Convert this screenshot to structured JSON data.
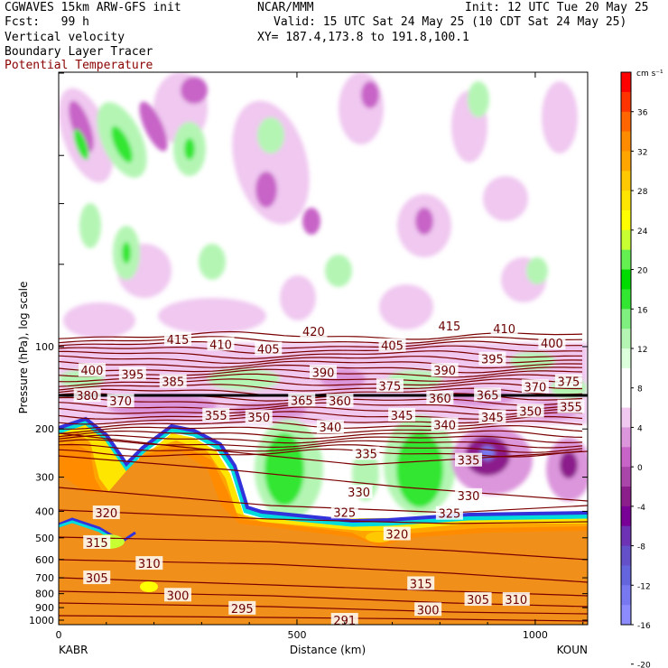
{
  "header": {
    "line1_left": "CGWAVES 15km ARW-GFS init",
    "line1_mid": "NCAR/MMM",
    "line1_right": "Init: 12 UTC Tue 20 May 25",
    "line2_left": "Fcst:   99 h",
    "line2_right": "Valid: 15 UTC Sat 24 May 25 (10 CDT Sat 24 May 25)",
    "line3_left": "Vertical velocity",
    "line3_right": "XY= 187.4,173.8 to 191.8,100.1",
    "line4_left": "Boundary Layer Tracer",
    "line5_left": "Potential Temperature"
  },
  "colors": {
    "theta_contour": "#7a0000",
    "tropopause_line": "#000000"
  },
  "chart_data": {
    "type": "heatmap",
    "xlabel": "Distance (km)",
    "ylabel": "Pressure (hPa), log scale",
    "xlim": [
      0,
      1110
    ],
    "x_ticks": [
      0,
      500,
      1000
    ],
    "y_ticks": [
      100,
      200,
      300,
      400,
      500,
      600,
      700,
      800,
      900,
      1000
    ],
    "ylim": [
      1000,
      10
    ],
    "y_scale": "log",
    "endpoints": {
      "left": "KABR",
      "right": "KOUN"
    },
    "colorbar": {
      "units": "cm s⁻¹",
      "tick_labels": [
        "36",
        "32",
        "28",
        "24",
        "20",
        "16",
        "12",
        "8",
        "4",
        "0",
        "-4",
        "-8",
        "-12",
        "-16",
        "-20"
      ],
      "colors": [
        "#ff0000",
        "#ff3300",
        "#ff6600",
        "#ff8c00",
        "#ffa500",
        "#ffc800",
        "#ffe600",
        "#ffff00",
        "#c8ff32",
        "#64f050",
        "#00dc00",
        "#32e632",
        "#7fef7f",
        "#b4f5b4",
        "#dcffdc",
        "#ffffff",
        "#ffffff",
        "#f0c8f0",
        "#dc96dc",
        "#c864c8",
        "#aa46aa",
        "#8c1e8c",
        "#780096",
        "#6e32b4",
        "#6450c8",
        "#6464dc",
        "#7878f0",
        "#8c8cff"
      ]
    },
    "theta_labels": [
      {
        "value": "415",
        "x": 250,
        "p": 94
      },
      {
        "value": "410",
        "x": 340,
        "p": 98
      },
      {
        "value": "405",
        "x": 440,
        "p": 102
      },
      {
        "value": "420",
        "x": 535,
        "p": 88
      },
      {
        "value": "405",
        "x": 700,
        "p": 99
      },
      {
        "value": "415",
        "x": 820,
        "p": 84
      },
      {
        "value": "410",
        "x": 935,
        "p": 86
      },
      {
        "value": "400",
        "x": 1035,
        "p": 97
      },
      {
        "value": "400",
        "x": 70,
        "p": 122
      },
      {
        "value": "395",
        "x": 155,
        "p": 126
      },
      {
        "value": "385",
        "x": 240,
        "p": 134
      },
      {
        "value": "390",
        "x": 555,
        "p": 124
      },
      {
        "value": "375",
        "x": 695,
        "p": 139
      },
      {
        "value": "390",
        "x": 810,
        "p": 122
      },
      {
        "value": "395",
        "x": 910,
        "p": 111
      },
      {
        "value": "370",
        "x": 1000,
        "p": 140
      },
      {
        "value": "375",
        "x": 1070,
        "p": 134
      },
      {
        "value": "380",
        "x": 60,
        "p": 151
      },
      {
        "value": "370",
        "x": 130,
        "p": 158
      },
      {
        "value": "365",
        "x": 510,
        "p": 157
      },
      {
        "value": "360",
        "x": 590,
        "p": 158
      },
      {
        "value": "360",
        "x": 800,
        "p": 154
      },
      {
        "value": "365",
        "x": 900,
        "p": 150
      },
      {
        "value": "355",
        "x": 330,
        "p": 178
      },
      {
        "value": "350",
        "x": 420,
        "p": 181
      },
      {
        "value": "345",
        "x": 720,
        "p": 178
      },
      {
        "value": "345",
        "x": 910,
        "p": 181
      },
      {
        "value": "350",
        "x": 990,
        "p": 172
      },
      {
        "value": "355",
        "x": 1075,
        "p": 166
      },
      {
        "value": "340",
        "x": 570,
        "p": 197
      },
      {
        "value": "340",
        "x": 810,
        "p": 193
      },
      {
        "value": "335",
        "x": 645,
        "p": 246
      },
      {
        "value": "335",
        "x": 860,
        "p": 260
      },
      {
        "value": "330",
        "x": 630,
        "p": 340
      },
      {
        "value": "330",
        "x": 860,
        "p": 350
      },
      {
        "value": "325",
        "x": 600,
        "p": 403
      },
      {
        "value": "325",
        "x": 820,
        "p": 407
      },
      {
        "value": "320",
        "x": 100,
        "p": 405
      },
      {
        "value": "320",
        "x": 710,
        "p": 484
      },
      {
        "value": "315",
        "x": 80,
        "p": 520
      },
      {
        "value": "310",
        "x": 190,
        "p": 620
      },
      {
        "value": "305",
        "x": 80,
        "p": 700
      },
      {
        "value": "300",
        "x": 250,
        "p": 810
      },
      {
        "value": "295",
        "x": 385,
        "p": 905
      },
      {
        "value": "315",
        "x": 760,
        "p": 735
      },
      {
        "value": "305",
        "x": 880,
        "p": 840
      },
      {
        "value": "310",
        "x": 960,
        "p": 840
      },
      {
        "value": "300",
        "x": 775,
        "p": 915
      },
      {
        "value": "291",
        "x": 600,
        "p": 1000
      }
    ]
  }
}
